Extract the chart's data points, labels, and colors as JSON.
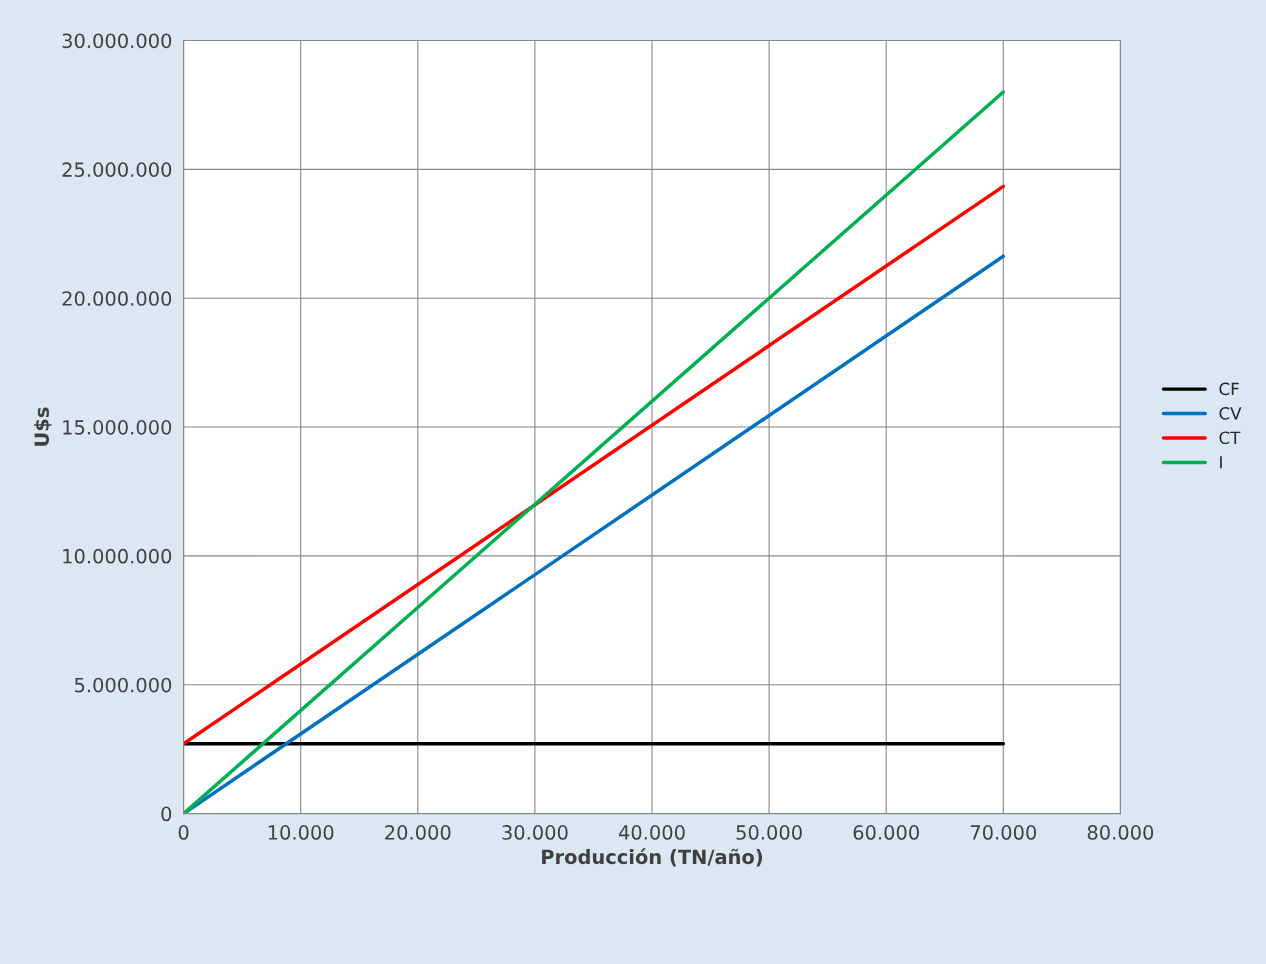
{
  "chart_data": {
    "type": "line",
    "xlabel": "Producción (TN/año)",
    "ylabel": "U$s",
    "x": [
      0,
      70000
    ],
    "series": [
      {
        "name": "CF",
        "color": "#000000",
        "values": [
          2710000,
          2710000
        ]
      },
      {
        "name": "CV",
        "color": "#0070c0",
        "values": [
          0,
          21630000
        ]
      },
      {
        "name": "CT",
        "color": "#ff0000",
        "values": [
          2710000,
          24340000
        ]
      },
      {
        "name": "I",
        "color": "#00b050",
        "values": [
          0,
          28000000
        ]
      }
    ],
    "xlim": [
      0,
      80000
    ],
    "xticks": [
      0,
      {
        "value": 10000,
        "label": "10.000"
      },
      {
        "value": 20000,
        "label": "20.000"
      },
      {
        "value": 30000,
        "label": "30.000"
      },
      {
        "value": 40000,
        "label": "40.000"
      },
      {
        "value": 50000,
        "label": "50.000"
      },
      {
        "value": 60000,
        "label": "60.000"
      },
      {
        "value": 70000,
        "label": "70.000"
      },
      {
        "value": 80000,
        "label": "80.000"
      }
    ],
    "ylim": [
      0,
      30000000
    ],
    "yticks": [
      0,
      {
        "value": 5000000,
        "label": "5.000.000"
      },
      {
        "value": 10000000,
        "label": "10.000.000"
      },
      {
        "value": 15000000,
        "label": "15.000.000"
      },
      {
        "value": 20000000,
        "label": "20.000.000"
      },
      {
        "value": 25000000,
        "label": "25.000.000"
      },
      {
        "value": 30000000,
        "label": "30.000.000"
      }
    ],
    "grid": true,
    "legend": "right",
    "marker": "none",
    "line_style": "solid"
  }
}
